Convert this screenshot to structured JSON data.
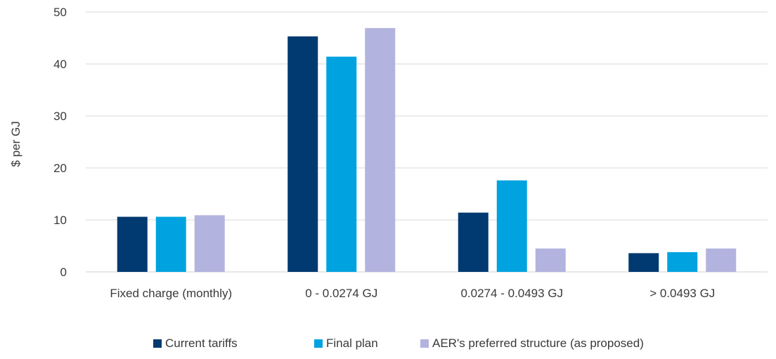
{
  "chart_data": {
    "type": "bar",
    "title": "",
    "xlabel": "",
    "ylabel": "$ per GJ",
    "ylim": [
      0,
      50
    ],
    "yticks": [
      0,
      10,
      20,
      30,
      40,
      50
    ],
    "grid": true,
    "legend_position": "bottom",
    "categories": [
      "Fixed charge (monthly)",
      "0 - 0.0274 GJ",
      "0.0274 - 0.0493 GJ",
      "> 0.0493 GJ"
    ],
    "series": [
      {
        "name": "Current tariffs",
        "color": "#003a70",
        "values": [
          10.6,
          45.3,
          11.4,
          3.6
        ]
      },
      {
        "name": "Final plan",
        "color": "#00a3e0",
        "values": [
          10.6,
          41.4,
          17.6,
          3.8
        ]
      },
      {
        "name": "AER's preferred structure (as proposed)",
        "color": "#b3b3df",
        "values": [
          10.9,
          46.9,
          4.5,
          4.5
        ]
      }
    ]
  }
}
